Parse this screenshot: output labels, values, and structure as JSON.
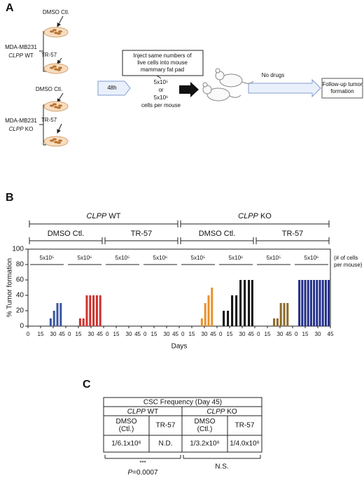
{
  "panel_a": {
    "letter": "A",
    "dmso": "DMSO Ctl.",
    "tr57": "TR-57",
    "cell_line": "MDA-MB231",
    "wt": {
      "gene": "CLPP",
      "label": "WT"
    },
    "ko": {
      "gene": "CLPP",
      "label": "KO"
    },
    "time": "48h",
    "inject": [
      "Inject same numbers of",
      "live cells into mouse",
      "mammary fat pad"
    ],
    "doses": [
      "5x10⁵",
      "or",
      "5x10⁶",
      "cells per mouse"
    ],
    "no_drugs": "No drugs",
    "follow_up": [
      "Follow-up tumor",
      "formation"
    ]
  },
  "panel_b_letter": "B",
  "chart_data": {
    "type": "bar",
    "ylabel": "% Tumor formation",
    "xlabel": "Days",
    "cells_note": [
      "(# of cells",
      "per mouse)"
    ],
    "genotypes": [
      {
        "gene": "CLPP",
        "label": "WT"
      },
      {
        "gene": "CLPP",
        "label": "KO"
      }
    ],
    "treatments": [
      "DMSO Ctl.",
      "TR-57",
      "DMSO Ctl.",
      "TR-57"
    ],
    "xlim": [
      0,
      45
    ],
    "xticks": [
      0,
      15,
      30,
      45
    ],
    "ylim": [
      0,
      100
    ],
    "yticks": [
      0,
      20,
      40,
      60,
      80,
      100
    ],
    "series": [
      {
        "name": "5x10⁵",
        "color": "#3a55a4",
        "x": [
          27,
          31,
          35,
          39
        ],
        "values": [
          10,
          20,
          30,
          30
        ]
      },
      {
        "name": "5x10⁶",
        "color": "#d0312d",
        "x": [
          17,
          21,
          25,
          29,
          33,
          37,
          41
        ],
        "values": [
          10,
          10,
          40,
          40,
          40,
          40,
          40
        ]
      },
      {
        "name": "5x10⁵",
        "color": "#3a55a4",
        "x": [],
        "values": []
      },
      {
        "name": "5x10⁶",
        "color": "#d0312d",
        "x": [],
        "values": []
      },
      {
        "name": "5x10⁵",
        "color": "#e8922a",
        "x": [
          27,
          31,
          35,
          39
        ],
        "values": [
          10,
          30,
          40,
          50
        ]
      },
      {
        "name": "5x10⁶",
        "color": "#111111",
        "x": [
          8,
          13,
          18,
          23,
          28,
          33,
          38,
          42
        ],
        "values": [
          20,
          20,
          40,
          40,
          60,
          60,
          60,
          60
        ]
      },
      {
        "name": "5x10⁵",
        "color": "#8c6a2a",
        "x": [
          23,
          27,
          31,
          35,
          39
        ],
        "values": [
          10,
          10,
          30,
          30,
          30
        ]
      },
      {
        "name": "5x10⁶",
        "color": "#232f8a",
        "x": [
          8,
          11.5,
          15,
          18.5,
          22,
          25.5,
          29,
          32.5,
          36,
          39.5,
          43
        ],
        "values": [
          60,
          60,
          60,
          60,
          60,
          60,
          60,
          60,
          60,
          60,
          60
        ]
      }
    ]
  },
  "panel_c": {
    "letter": "C",
    "title": "CSC Frequency (Day 45)",
    "wt": {
      "gene": "CLPP",
      "label": "WT"
    },
    "ko": {
      "gene": "CLPP",
      "label": "KO"
    },
    "headers": [
      [
        "DMSO",
        "(Ctl.)"
      ],
      [
        "TR-57"
      ],
      [
        "DMSO",
        "(Ctl.)"
      ],
      [
        "TR-57"
      ]
    ],
    "values": [
      "1/6.1x10⁶",
      "N.D.",
      "1/3.2x10⁶",
      "1/4.0x10⁶"
    ],
    "wt_significance": "***",
    "p_value": {
      "symbol": "P",
      "text": "=0.0007"
    },
    "ko_significance": "N.S."
  }
}
